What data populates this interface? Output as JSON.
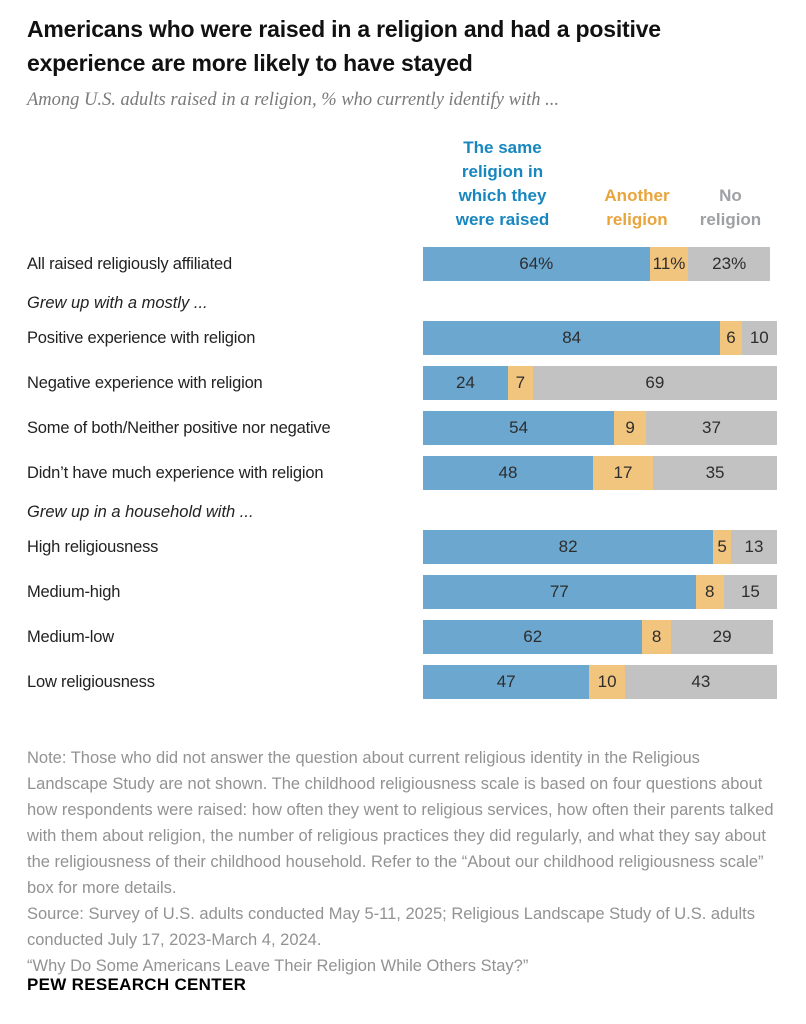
{
  "chart_data": {
    "type": "bar",
    "orientation": "horizontal",
    "stacked": true,
    "title": "Americans who were raised in a religion and had a positive experience are more likely to have stayed",
    "subtitle": "Among U.S. adults raised in a religion, % who currently identify with ...",
    "xlim": [
      0,
      100
    ],
    "grid": false,
    "legend_position": "top",
    "series_names": [
      "The same religion in which they were raised",
      "Another religion",
      "No religion"
    ],
    "series_colors": [
      "#6BA7CF",
      "#F2C57F",
      "#C2C2C2"
    ],
    "legend_text_colors": [
      "#1886BF",
      "#E9A43C",
      "#9EA0A3"
    ],
    "rows": [
      {
        "type": "bar",
        "label": "All raised religiously affiliated",
        "values": [
          64,
          11,
          23
        ],
        "value_suffix": "%"
      },
      {
        "type": "section",
        "label": "Grew up with a mostly ..."
      },
      {
        "type": "bar",
        "label": "Positive experience with religion",
        "values": [
          84,
          6,
          10
        ],
        "value_suffix": ""
      },
      {
        "type": "bar",
        "label": "Negative experience with religion",
        "values": [
          24,
          7,
          69
        ],
        "value_suffix": ""
      },
      {
        "type": "bar",
        "label": "Some of both/Neither positive nor negative",
        "values": [
          54,
          9,
          37
        ],
        "value_suffix": ""
      },
      {
        "type": "bar",
        "label": "Didn’t have much experience with religion",
        "values": [
          48,
          17,
          35
        ],
        "value_suffix": ""
      },
      {
        "type": "section",
        "label": "Grew up in a household with ..."
      },
      {
        "type": "bar",
        "label": "High religiousness",
        "values": [
          82,
          5,
          13
        ],
        "value_suffix": ""
      },
      {
        "type": "bar",
        "label": "Medium-high",
        "values": [
          77,
          8,
          15
        ],
        "value_suffix": ""
      },
      {
        "type": "bar",
        "label": "Medium-low",
        "values": [
          62,
          8,
          29
        ],
        "value_suffix": ""
      },
      {
        "type": "bar",
        "label": "Low religiousness",
        "values": [
          47,
          10,
          43
        ],
        "value_suffix": ""
      }
    ]
  },
  "notes": {
    "note": "Note: Those who did not answer the question about current religious identity in the Religious Landscape Study are not shown. The childhood religiousness scale is based on four questions about how respondents were raised: how often they went to religious services, how often their parents talked with them about religion, the number of religious practices they did regularly, and what they say about the religiousness of their childhood household. Refer to the “About our childhood religiousness scale” box for more details.",
    "source": "Source: Survey of U.S. adults conducted May 5-11, 2025; Religious Landscape Study of U.S. adults conducted July 17, 2023-March 4, 2024.",
    "report": "“Why Do Some Americans Leave Their Religion While Others Stay?”"
  },
  "footer": "PEW RESEARCH CENTER"
}
